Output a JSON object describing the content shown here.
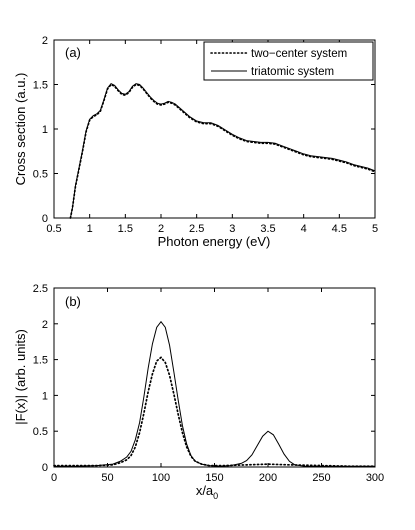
{
  "chart_data": [
    {
      "type": "line",
      "panel_label": "(a)",
      "xlabel": "Photon energy (eV)",
      "ylabel": "Cross section (a.u.)",
      "xlim": [
        0.5,
        5
      ],
      "ylim": [
        0,
        2
      ],
      "xticks": [
        "0.5",
        "1",
        "1.5",
        "2",
        "2.5",
        "3",
        "3.5",
        "4",
        "4.5",
        "5"
      ],
      "yticks": [
        "0",
        "0.5",
        "1",
        "1.5",
        "2"
      ],
      "grid": false,
      "legend_position": "top-right",
      "series": [
        {
          "name": "two−center system",
          "style": "dotted",
          "x": [
            0.73,
            0.76,
            0.8,
            0.85,
            0.9,
            0.95,
            1.0,
            1.05,
            1.1,
            1.15,
            1.2,
            1.25,
            1.3,
            1.35,
            1.4,
            1.45,
            1.5,
            1.55,
            1.6,
            1.65,
            1.7,
            1.75,
            1.8,
            1.85,
            1.9,
            1.95,
            2.0,
            2.05,
            2.1,
            2.15,
            2.2,
            2.3,
            2.4,
            2.5,
            2.6,
            2.7,
            2.8,
            2.9,
            3.0,
            3.1,
            3.2,
            3.3,
            3.4,
            3.5,
            3.6,
            3.7,
            3.8,
            3.9,
            4.0,
            4.1,
            4.2,
            4.3,
            4.4,
            4.5,
            4.6,
            4.7,
            4.8,
            4.9,
            5.0
          ],
          "y": [
            0.0,
            0.12,
            0.35,
            0.55,
            0.75,
            0.97,
            1.1,
            1.14,
            1.16,
            1.2,
            1.32,
            1.45,
            1.5,
            1.48,
            1.43,
            1.39,
            1.38,
            1.41,
            1.47,
            1.5,
            1.49,
            1.45,
            1.4,
            1.35,
            1.31,
            1.28,
            1.27,
            1.28,
            1.3,
            1.29,
            1.27,
            1.2,
            1.13,
            1.08,
            1.06,
            1.06,
            1.03,
            0.98,
            0.93,
            0.89,
            0.86,
            0.85,
            0.84,
            0.84,
            0.83,
            0.8,
            0.77,
            0.74,
            0.71,
            0.69,
            0.68,
            0.67,
            0.66,
            0.64,
            0.62,
            0.59,
            0.57,
            0.55,
            0.52
          ]
        },
        {
          "name": "triatomic system",
          "style": "solid",
          "x": [
            0.73,
            0.76,
            0.8,
            0.85,
            0.9,
            0.95,
            1.0,
            1.05,
            1.1,
            1.15,
            1.2,
            1.25,
            1.3,
            1.35,
            1.4,
            1.45,
            1.5,
            1.55,
            1.6,
            1.65,
            1.7,
            1.75,
            1.8,
            1.85,
            1.9,
            1.95,
            2.0,
            2.05,
            2.1,
            2.15,
            2.2,
            2.3,
            2.4,
            2.5,
            2.6,
            2.7,
            2.8,
            2.9,
            3.0,
            3.1,
            3.2,
            3.3,
            3.4,
            3.5,
            3.6,
            3.7,
            3.8,
            3.9,
            4.0,
            4.1,
            4.2,
            4.3,
            4.4,
            4.5,
            4.6,
            4.7,
            4.8,
            4.9,
            5.0
          ],
          "y": [
            0.0,
            0.12,
            0.36,
            0.56,
            0.76,
            0.98,
            1.11,
            1.15,
            1.17,
            1.21,
            1.33,
            1.46,
            1.51,
            1.49,
            1.44,
            1.4,
            1.39,
            1.42,
            1.48,
            1.51,
            1.5,
            1.46,
            1.41,
            1.36,
            1.32,
            1.29,
            1.28,
            1.29,
            1.31,
            1.3,
            1.28,
            1.21,
            1.14,
            1.09,
            1.07,
            1.07,
            1.04,
            0.99,
            0.94,
            0.9,
            0.87,
            0.86,
            0.85,
            0.85,
            0.84,
            0.81,
            0.78,
            0.75,
            0.72,
            0.7,
            0.69,
            0.68,
            0.67,
            0.65,
            0.63,
            0.6,
            0.58,
            0.56,
            0.53
          ]
        }
      ]
    },
    {
      "type": "line",
      "panel_label": "(b)",
      "xlabel": "x/a",
      "xlabel_subscript": "0",
      "ylabel": "|F(x)| (arb. units)",
      "xlim": [
        0,
        300
      ],
      "ylim": [
        0,
        2.5
      ],
      "xticks": [
        "0",
        "50",
        "100",
        "150",
        "200",
        "250",
        "300"
      ],
      "yticks": [
        "0",
        "0.5",
        "1",
        "1.5",
        "2",
        "2.5"
      ],
      "grid": false,
      "series": [
        {
          "style": "dotted",
          "x": [
            0,
            20,
            40,
            55,
            62,
            68,
            72,
            76,
            80,
            84,
            88,
            92,
            96,
            100,
            104,
            108,
            112,
            116,
            120,
            124,
            128,
            132,
            138,
            145,
            160,
            180,
            200,
            220,
            250,
            280,
            300
          ],
          "y": [
            0.02,
            0.02,
            0.02,
            0.03,
            0.06,
            0.1,
            0.16,
            0.28,
            0.48,
            0.75,
            1.05,
            1.3,
            1.48,
            1.53,
            1.46,
            1.28,
            1.02,
            0.74,
            0.48,
            0.28,
            0.15,
            0.08,
            0.04,
            0.02,
            0.02,
            0.03,
            0.04,
            0.03,
            0.02,
            0.01,
            0.01
          ]
        },
        {
          "style": "solid",
          "x": [
            0,
            20,
            40,
            55,
            62,
            68,
            72,
            76,
            80,
            84,
            88,
            92,
            96,
            100,
            104,
            108,
            112,
            116,
            120,
            124,
            128,
            132,
            138,
            145,
            155,
            165,
            175,
            180,
            185,
            190,
            195,
            200,
            205,
            210,
            215,
            220,
            225,
            235,
            250,
            280,
            300
          ],
          "y": [
            0.01,
            0.01,
            0.02,
            0.04,
            0.08,
            0.14,
            0.22,
            0.38,
            0.62,
            0.98,
            1.38,
            1.72,
            1.95,
            2.03,
            1.95,
            1.7,
            1.33,
            0.94,
            0.58,
            0.32,
            0.16,
            0.08,
            0.04,
            0.02,
            0.01,
            0.02,
            0.05,
            0.09,
            0.17,
            0.3,
            0.43,
            0.5,
            0.45,
            0.32,
            0.18,
            0.08,
            0.03,
            0.01,
            0.01,
            0.01,
            0.01
          ]
        }
      ]
    }
  ]
}
